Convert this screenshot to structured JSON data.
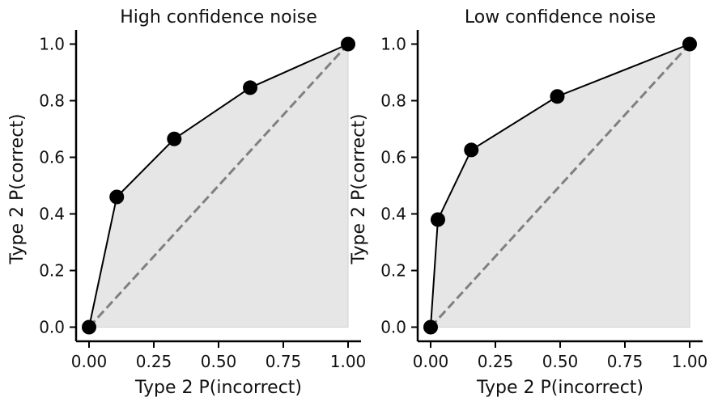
{
  "chart_data": [
    {
      "type": "line",
      "title": "High confidence noise",
      "xlabel": "Type 2 P(incorrect)",
      "ylabel": "Type 2 P(correct)",
      "xlim": [
        -0.05,
        1.05
      ],
      "ylim": [
        -0.05,
        1.05
      ],
      "xticks": [
        "0.00",
        "0.25",
        "0.50",
        "0.75",
        "1.00"
      ],
      "yticks": [
        "0.0",
        "0.2",
        "0.4",
        "0.6",
        "0.8",
        "1.0"
      ],
      "grid": false,
      "series": [
        {
          "x": [
            0.0,
            0.107,
            0.329,
            0.622,
            1.0
          ],
          "y": [
            0.0,
            0.46,
            0.665,
            0.846,
            1.0
          ],
          "color": "#000000"
        }
      ],
      "chance_line": {
        "x": [
          0,
          1
        ],
        "y": [
          0,
          1
        ],
        "color": "#808080",
        "style": "dashed"
      },
      "fill_color": "#e6e6e6"
    },
    {
      "type": "line",
      "title": "Low confidence noise",
      "xlabel": "Type 2 P(incorrect)",
      "ylabel": "Type 2 P(correct)",
      "xlim": [
        -0.05,
        1.05
      ],
      "ylim": [
        -0.05,
        1.05
      ],
      "xticks": [
        "0.00",
        "0.25",
        "0.50",
        "0.75",
        "1.00"
      ],
      "yticks": [
        "0.0",
        "0.2",
        "0.4",
        "0.6",
        "0.8",
        "1.0"
      ],
      "grid": false,
      "series": [
        {
          "x": [
            0.0,
            0.028,
            0.157,
            0.489,
            1.0
          ],
          "y": [
            0.0,
            0.38,
            0.626,
            0.815,
            1.0
          ],
          "color": "#000000"
        }
      ],
      "chance_line": {
        "x": [
          0,
          1
        ],
        "y": [
          0,
          1
        ],
        "color": "#808080",
        "style": "dashed"
      },
      "fill_color": "#e6e6e6"
    }
  ]
}
